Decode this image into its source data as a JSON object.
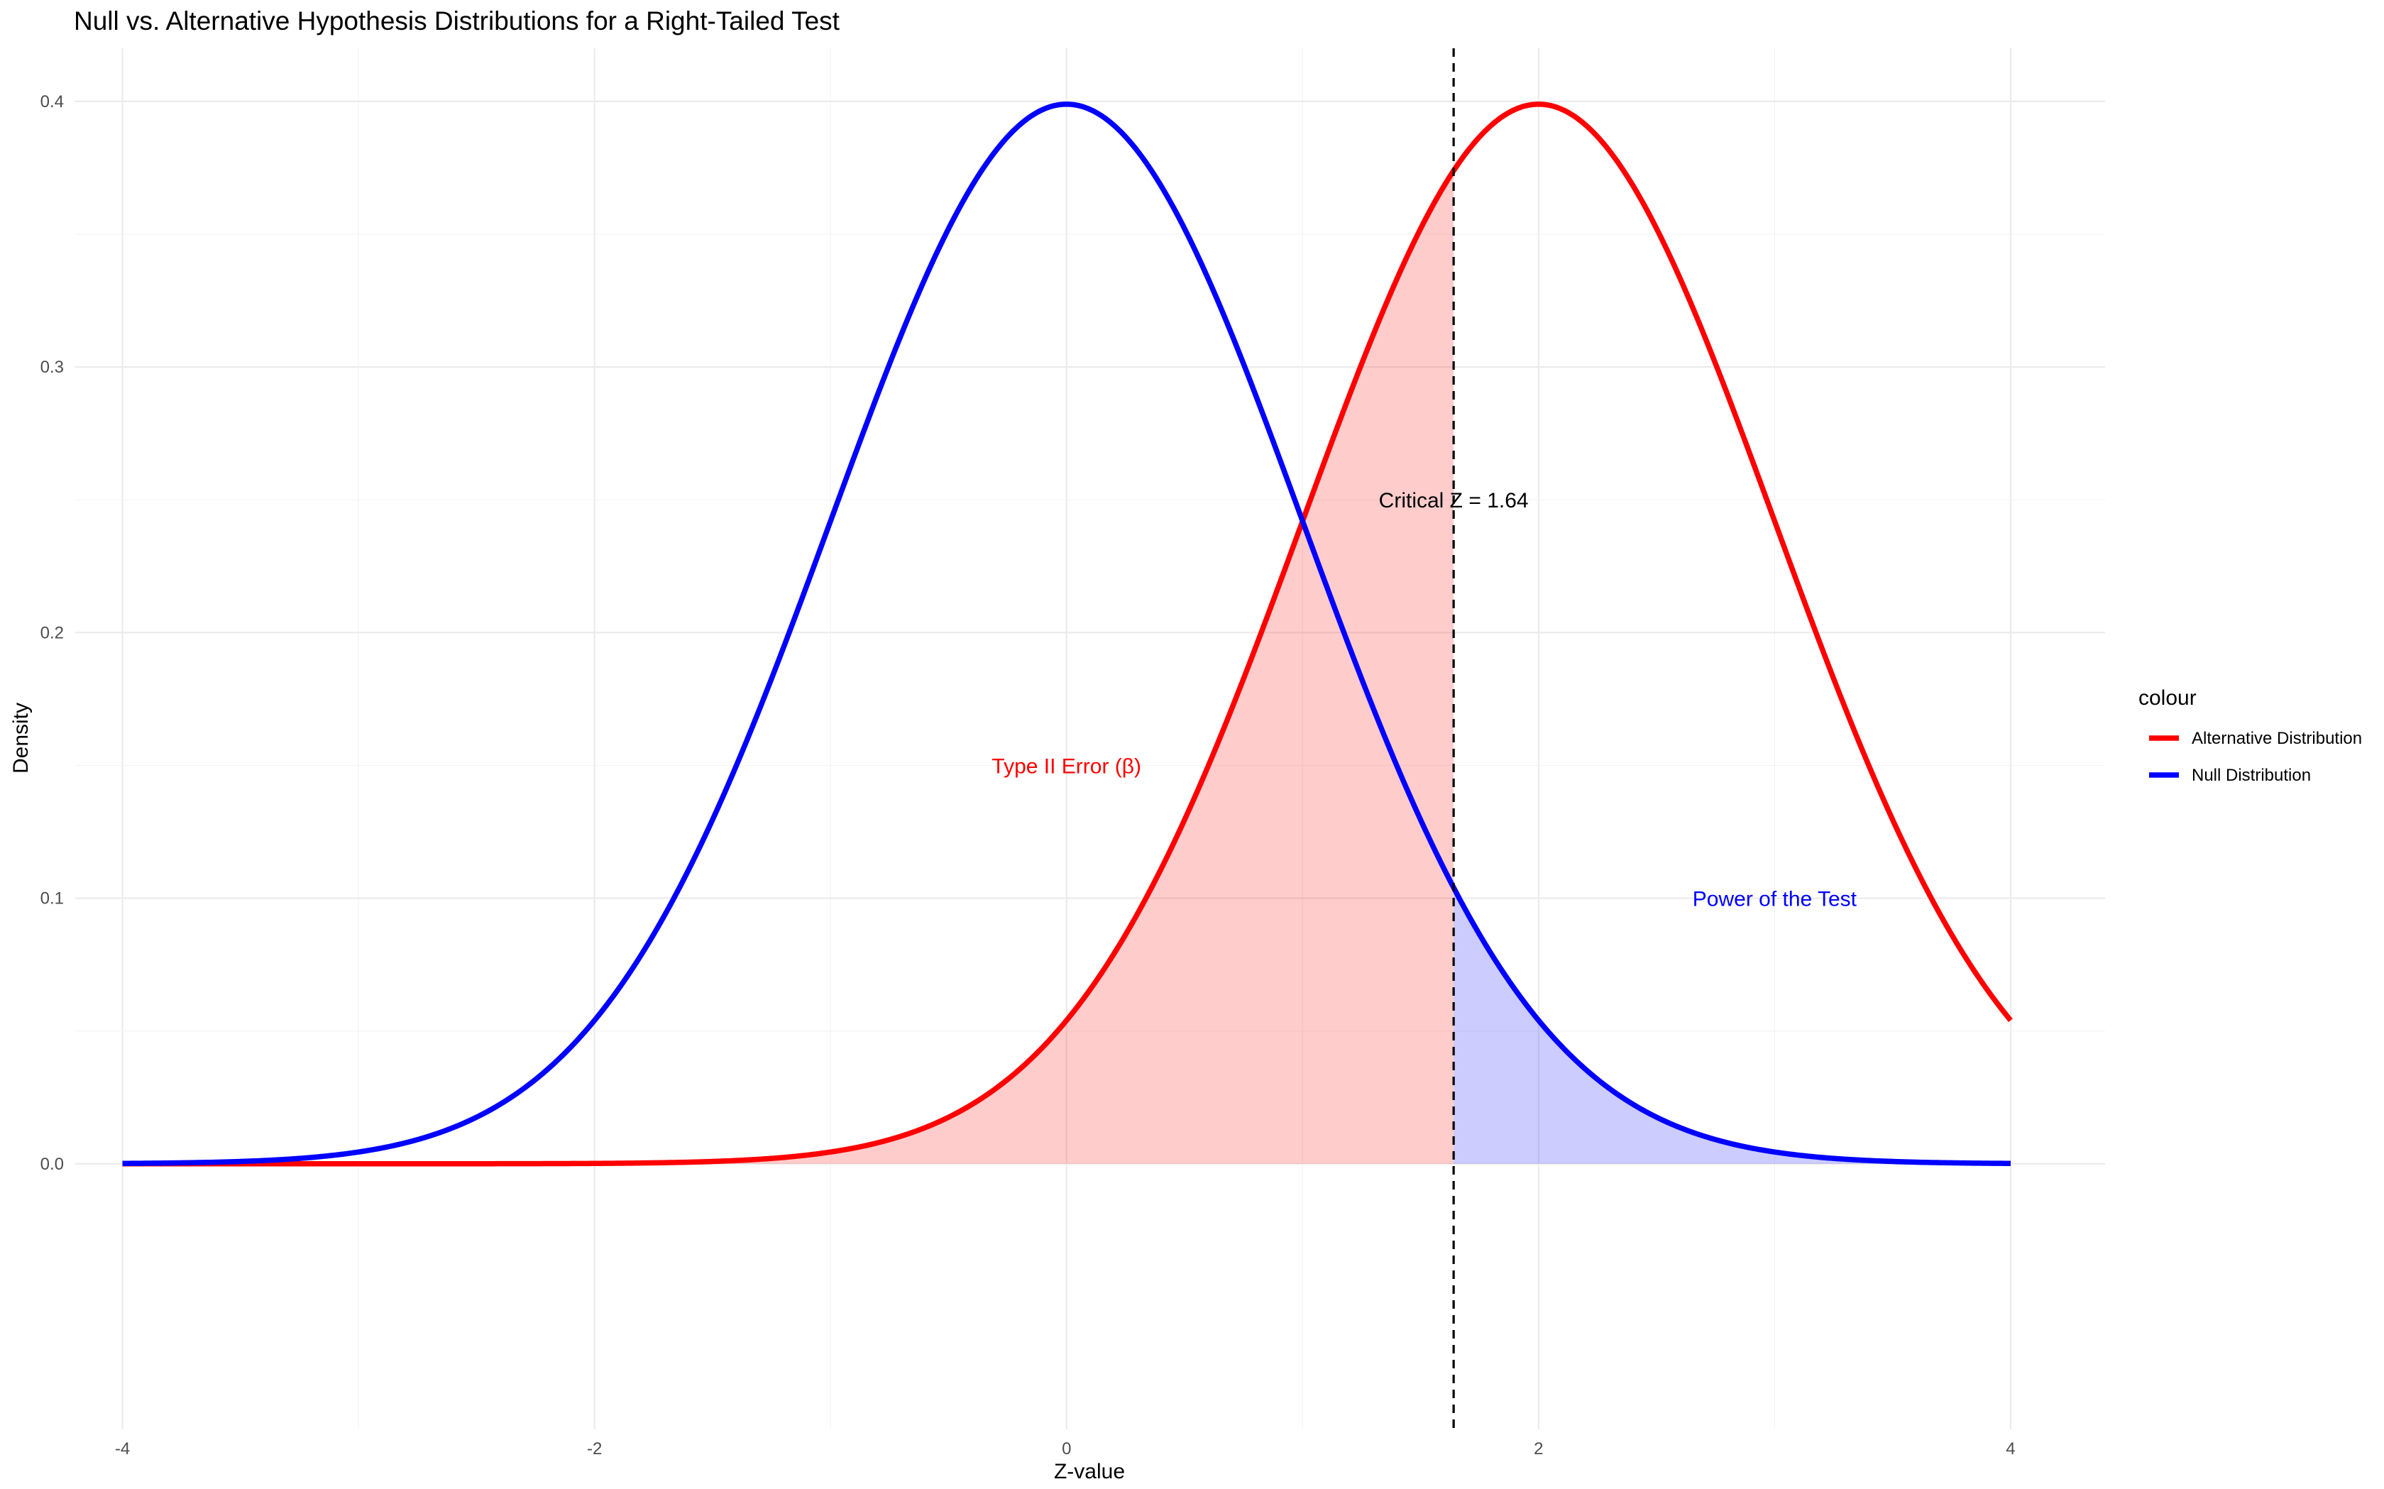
{
  "chart_data": {
    "type": "line",
    "title": "Null vs. Alternative Hypothesis Distributions for a Right-Tailed Test",
    "xlabel": "Z-value",
    "ylabel": "Density",
    "xlim": [
      -4.2,
      4.4
    ],
    "ylim": [
      -0.1,
      0.42
    ],
    "x_ticks": [
      -4,
      -2,
      0,
      2,
      4
    ],
    "x_tick_labels": [
      "-4",
      "-2",
      "0",
      "2",
      "4"
    ],
    "y_ticks": [
      0.0,
      0.1,
      0.2,
      0.3,
      0.4
    ],
    "y_tick_labels": [
      "0.0",
      "0.1",
      "0.2",
      "0.3",
      "0.4"
    ],
    "grid": true,
    "legend_title": "colour",
    "legend_position": "right",
    "critical_z": 1.64,
    "series": [
      {
        "name": "Alternative Distribution",
        "color": "#ff0000",
        "distribution": "normal",
        "mean": 2,
        "sd": 1,
        "x_range": [
          -4,
          4
        ]
      },
      {
        "name": "Null Distribution",
        "color": "#0000ff",
        "distribution": "normal",
        "mean": 0,
        "sd": 1,
        "x_range": [
          -4,
          4
        ]
      }
    ],
    "shaded_regions": [
      {
        "label": "Type II Error (β)",
        "series": "Alternative Distribution",
        "x_range": [
          -4,
          1.64
        ],
        "fill": "#ff0000",
        "opacity": 0.2
      },
      {
        "label": "Power of the Test",
        "series": "Null Distribution",
        "x_range": [
          1.64,
          4
        ],
        "fill": "#0000ff",
        "opacity": 0.2
      }
    ],
    "annotations": [
      {
        "text": "Critical Z = 1.64",
        "x": 1.64,
        "y": 0.25,
        "color": "#000000"
      },
      {
        "text": "Type II Error (β)",
        "x": 0,
        "y": 0.15,
        "color": "#ff0000"
      },
      {
        "text": "Power of the Test",
        "x": 3,
        "y": 0.1,
        "color": "#0000ff"
      }
    ]
  }
}
